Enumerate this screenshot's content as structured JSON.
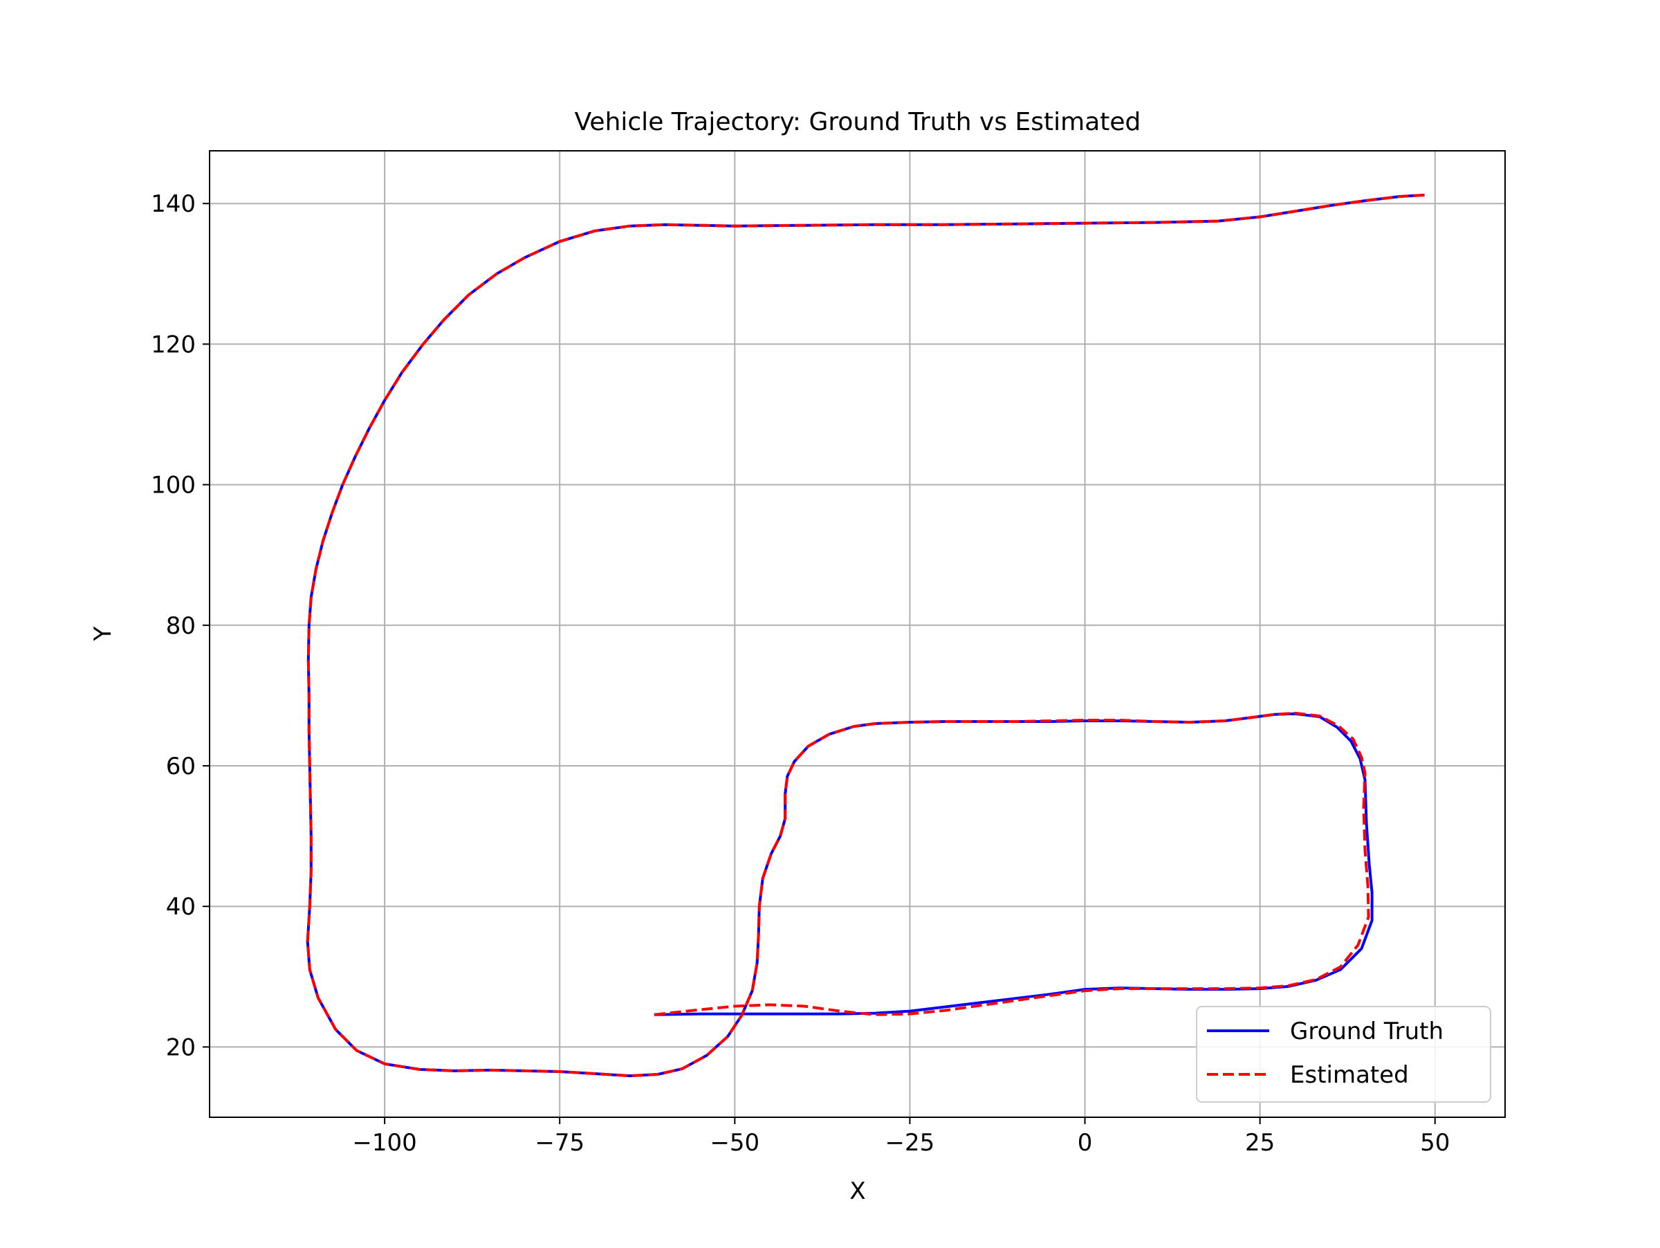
{
  "chart_data": {
    "type": "line",
    "title": "Vehicle Trajectory: Ground Truth vs Estimated",
    "xlabel": "X",
    "ylabel": "Y",
    "xlim": [
      -125,
      60
    ],
    "ylim": [
      10,
      147.5
    ],
    "xticks": [
      -100,
      -75,
      -50,
      -25,
      0,
      25,
      50
    ],
    "yticks": [
      20,
      40,
      60,
      80,
      100,
      120,
      140
    ],
    "xtick_labels": [
      "−100",
      "−75",
      "−50",
      "−25",
      "0",
      "25",
      "50"
    ],
    "ytick_labels": [
      "20",
      "40",
      "60",
      "80",
      "100",
      "120",
      "140"
    ],
    "grid": true,
    "legend_position": "lower-right",
    "series": [
      {
        "name": "Ground Truth",
        "color": "#0000ff",
        "style": "solid",
        "points": [
          [
            -61.5,
            24.6
          ],
          [
            -55,
            24.7
          ],
          [
            -45,
            24.7
          ],
          [
            -35,
            24.7
          ],
          [
            -30,
            24.8
          ],
          [
            -25,
            25.1
          ],
          [
            -20,
            25.7
          ],
          [
            -15,
            26.3
          ],
          [
            -10,
            26.9
          ],
          [
            -5,
            27.5
          ],
          [
            0,
            28.2
          ],
          [
            5,
            28.4
          ],
          [
            10,
            28.3
          ],
          [
            15,
            28.2
          ],
          [
            20,
            28.2
          ],
          [
            25,
            28.3
          ],
          [
            29,
            28.6
          ],
          [
            33,
            29.5
          ],
          [
            36.5,
            31.0
          ],
          [
            39.5,
            34.0
          ],
          [
            41,
            38.0
          ],
          [
            41,
            42.0
          ],
          [
            40.6,
            46.0
          ],
          [
            40.2,
            52.0
          ],
          [
            40.0,
            58.0
          ],
          [
            39.3,
            61.0
          ],
          [
            38,
            63.5
          ],
          [
            36,
            65.5
          ],
          [
            33.5,
            67.0
          ],
          [
            30,
            67.4
          ],
          [
            27,
            67.3
          ],
          [
            24,
            66.9
          ],
          [
            20,
            66.4
          ],
          [
            15,
            66.2
          ],
          [
            10,
            66.3
          ],
          [
            5,
            66.4
          ],
          [
            0,
            66.4
          ],
          [
            -5,
            66.3
          ],
          [
            -10,
            66.3
          ],
          [
            -15,
            66.3
          ],
          [
            -20,
            66.3
          ],
          [
            -25,
            66.2
          ],
          [
            -30,
            66.0
          ],
          [
            -33,
            65.6
          ],
          [
            -36.5,
            64.5
          ],
          [
            -39.5,
            62.8
          ],
          [
            -41.5,
            60.6
          ],
          [
            -42.5,
            58.5
          ],
          [
            -42.8,
            56.0
          ],
          [
            -42.8,
            52.5
          ],
          [
            -43.5,
            50.0
          ],
          [
            -44.8,
            47.5
          ],
          [
            -46,
            44.0
          ],
          [
            -46.5,
            40.0
          ],
          [
            -46.6,
            36.0
          ],
          [
            -46.8,
            32.0
          ],
          [
            -47.5,
            28.0
          ],
          [
            -49,
            24.5
          ],
          [
            -51,
            21.5
          ],
          [
            -54,
            18.8
          ],
          [
            -57.5,
            16.9
          ],
          [
            -61,
            16.1
          ],
          [
            -65,
            15.9
          ],
          [
            -70,
            16.2
          ],
          [
            -75,
            16.5
          ],
          [
            -80,
            16.6
          ],
          [
            -85,
            16.7
          ],
          [
            -90,
            16.6
          ],
          [
            -95,
            16.8
          ],
          [
            -100,
            17.6
          ],
          [
            -104,
            19.5
          ],
          [
            -107,
            22.5
          ],
          [
            -109.5,
            27.0
          ],
          [
            -110.7,
            31.0
          ],
          [
            -111,
            35.0
          ],
          [
            -110.7,
            40.0
          ],
          [
            -110.5,
            45.0
          ],
          [
            -110.5,
            50.0
          ],
          [
            -110.6,
            55.0
          ],
          [
            -110.7,
            60.0
          ],
          [
            -110.8,
            65.0
          ],
          [
            -110.8,
            70.0
          ],
          [
            -110.9,
            75.0
          ],
          [
            -110.8,
            80.0
          ],
          [
            -110.5,
            84.0
          ],
          [
            -109.8,
            88.0
          ],
          [
            -108.8,
            92.0
          ],
          [
            -107.5,
            96.0
          ],
          [
            -106,
            100.0
          ],
          [
            -104.2,
            104.0
          ],
          [
            -102.2,
            108.0
          ],
          [
            -100,
            112.0
          ],
          [
            -97.5,
            116.0
          ],
          [
            -94.5,
            120.0
          ],
          [
            -91.5,
            123.5
          ],
          [
            -88,
            127.0
          ],
          [
            -84,
            130.0
          ],
          [
            -80,
            132.3
          ],
          [
            -75,
            134.6
          ],
          [
            -70,
            136.1
          ],
          [
            -65,
            136.8
          ],
          [
            -60,
            137.0
          ],
          [
            -55,
            136.9
          ],
          [
            -50,
            136.8
          ],
          [
            -40,
            136.9
          ],
          [
            -30,
            137.0
          ],
          [
            -20,
            137.0
          ],
          [
            -10,
            137.1
          ],
          [
            0,
            137.2
          ],
          [
            10,
            137.3
          ],
          [
            19,
            137.5
          ],
          [
            25,
            138.1
          ],
          [
            30,
            138.9
          ],
          [
            35,
            139.7
          ],
          [
            40,
            140.4
          ],
          [
            45,
            141.0
          ],
          [
            48.5,
            141.2
          ]
        ]
      },
      {
        "name": "Estimated",
        "color": "#ff0000",
        "style": "dashed",
        "points": [
          [
            -61.5,
            24.6
          ],
          [
            -55,
            25.3
          ],
          [
            -50,
            25.8
          ],
          [
            -45,
            26.0
          ],
          [
            -40,
            25.8
          ],
          [
            -35,
            25.1
          ],
          [
            -30,
            24.6
          ],
          [
            -25,
            24.7
          ],
          [
            -20,
            25.2
          ],
          [
            -15,
            25.9
          ],
          [
            -10,
            26.6
          ],
          [
            -5,
            27.3
          ],
          [
            0,
            28.0
          ],
          [
            5,
            28.3
          ],
          [
            10,
            28.3
          ],
          [
            15,
            28.3
          ],
          [
            20,
            28.3
          ],
          [
            25,
            28.4
          ],
          [
            29,
            28.7
          ],
          [
            33,
            29.6
          ],
          [
            36.5,
            31.4
          ],
          [
            39,
            34.5
          ],
          [
            40.5,
            38.5
          ],
          [
            40.4,
            43.0
          ],
          [
            40.0,
            48.0
          ],
          [
            39.8,
            54.0
          ],
          [
            40.0,
            59.0
          ],
          [
            39.5,
            61.2
          ],
          [
            38.3,
            63.8
          ],
          [
            36.2,
            65.7
          ],
          [
            33.5,
            67.1
          ],
          [
            30,
            67.5
          ],
          [
            27,
            67.3
          ],
          [
            24,
            66.9
          ],
          [
            20,
            66.4
          ],
          [
            15,
            66.2
          ],
          [
            10,
            66.3
          ],
          [
            5,
            66.5
          ],
          [
            0,
            66.5
          ],
          [
            -5,
            66.4
          ],
          [
            -10,
            66.3
          ],
          [
            -15,
            66.3
          ],
          [
            -20,
            66.3
          ],
          [
            -25,
            66.2
          ],
          [
            -30,
            66.0
          ],
          [
            -33,
            65.6
          ],
          [
            -36.5,
            64.5
          ],
          [
            -39.5,
            62.8
          ],
          [
            -41.5,
            60.6
          ],
          [
            -42.5,
            58.5
          ],
          [
            -42.8,
            56.0
          ],
          [
            -42.8,
            52.5
          ],
          [
            -43.5,
            50.0
          ],
          [
            -44.8,
            47.5
          ],
          [
            -46,
            44.0
          ],
          [
            -46.5,
            40.0
          ],
          [
            -46.6,
            36.0
          ],
          [
            -46.8,
            32.0
          ],
          [
            -47.5,
            28.0
          ],
          [
            -49,
            24.5
          ],
          [
            -51,
            21.5
          ],
          [
            -54,
            18.8
          ],
          [
            -57.5,
            16.9
          ],
          [
            -61,
            16.1
          ],
          [
            -65,
            15.9
          ],
          [
            -70,
            16.2
          ],
          [
            -75,
            16.5
          ],
          [
            -80,
            16.6
          ],
          [
            -85,
            16.7
          ],
          [
            -90,
            16.6
          ],
          [
            -95,
            16.8
          ],
          [
            -100,
            17.6
          ],
          [
            -104,
            19.5
          ],
          [
            -107,
            22.5
          ],
          [
            -109.5,
            27.0
          ],
          [
            -110.7,
            31.0
          ],
          [
            -111,
            35.0
          ],
          [
            -110.7,
            40.0
          ],
          [
            -110.5,
            45.0
          ],
          [
            -110.5,
            50.0
          ],
          [
            -110.6,
            55.0
          ],
          [
            -110.7,
            60.0
          ],
          [
            -110.8,
            65.0
          ],
          [
            -110.8,
            70.0
          ],
          [
            -110.9,
            75.0
          ],
          [
            -110.8,
            80.0
          ],
          [
            -110.5,
            84.0
          ],
          [
            -109.8,
            88.0
          ],
          [
            -108.8,
            92.0
          ],
          [
            -107.5,
            96.0
          ],
          [
            -106,
            100.0
          ],
          [
            -104.2,
            104.0
          ],
          [
            -102.2,
            108.0
          ],
          [
            -100,
            112.0
          ],
          [
            -97.5,
            116.0
          ],
          [
            -94.5,
            120.0
          ],
          [
            -91.5,
            123.5
          ],
          [
            -88,
            127.0
          ],
          [
            -84,
            130.0
          ],
          [
            -80,
            132.3
          ],
          [
            -75,
            134.6
          ],
          [
            -70,
            136.1
          ],
          [
            -65,
            136.8
          ],
          [
            -60,
            137.0
          ],
          [
            -55,
            136.9
          ],
          [
            -50,
            136.8
          ],
          [
            -40,
            136.9
          ],
          [
            -30,
            137.0
          ],
          [
            -20,
            137.0
          ],
          [
            -10,
            137.1
          ],
          [
            0,
            137.2
          ],
          [
            10,
            137.3
          ],
          [
            19,
            137.5
          ],
          [
            25,
            138.1
          ],
          [
            30,
            138.9
          ],
          [
            35,
            139.7
          ],
          [
            40,
            140.4
          ],
          [
            45,
            141.0
          ],
          [
            48.5,
            141.2
          ]
        ]
      }
    ]
  }
}
